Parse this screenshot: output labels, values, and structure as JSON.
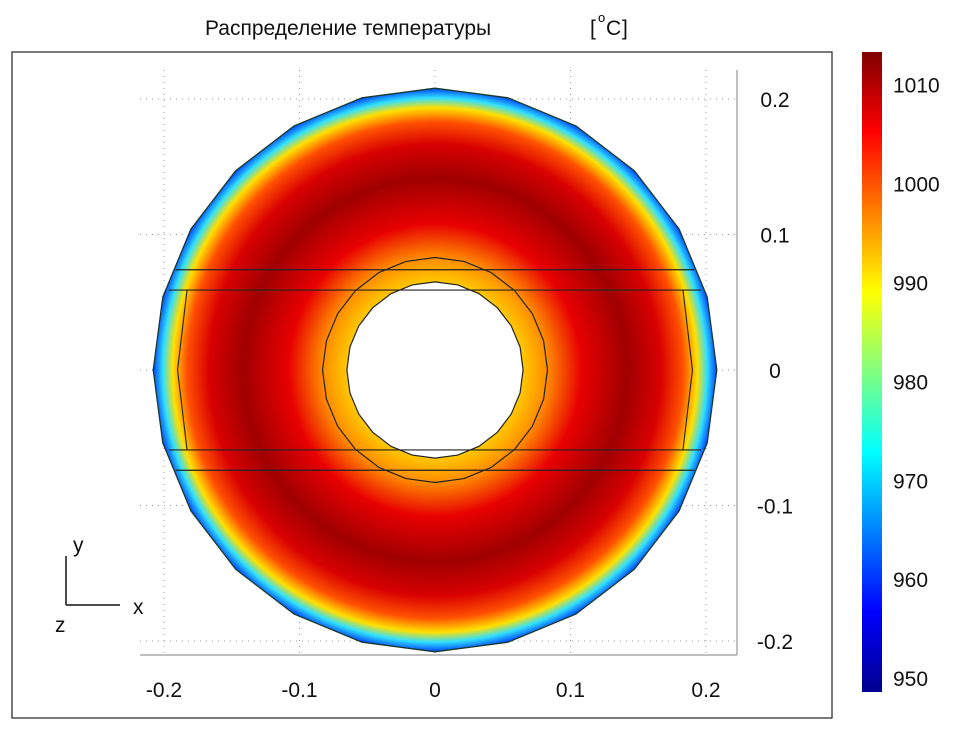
{
  "chart_data": {
    "type": "heatmap",
    "title": "Распределение температуры",
    "unit_label": "[°C]",
    "unit_superscript": "o",
    "unit_letter": "C",
    "xlabel": "x",
    "ylabel": "y",
    "zlabel": "z",
    "xlim": [
      -0.22,
      0.22
    ],
    "ylim": [
      -0.22,
      0.22
    ],
    "x_ticks": [
      "-0.2",
      "-0.1",
      "0",
      "0.1",
      "0.2"
    ],
    "x_tick_values": [
      -0.2,
      -0.1,
      0,
      0.1,
      0.2
    ],
    "y_ticks": [
      "0.2",
      "0.1",
      "0",
      "-0.1",
      "-0.2"
    ],
    "y_tick_values": [
      0.2,
      0.1,
      0,
      -0.1,
      -0.2
    ],
    "grid": true,
    "geometry": {
      "outer_radius": 0.208,
      "inner_ring_radius": 0.083,
      "hole_radius": 0.065,
      "band_lines_y": [
        0.074,
        0.059,
        -0.059,
        -0.074
      ]
    },
    "colormap": "jet",
    "color_range": [
      948.6,
      1013.3
    ],
    "colorbar_ticks": [
      "1010",
      "1000",
      "990",
      "980",
      "970",
      "960",
      "950"
    ],
    "colorbar_tick_values": [
      1010,
      1000,
      990,
      980,
      970,
      960,
      950
    ],
    "field": {
      "hole_edge_value": 993,
      "max_value": 1013,
      "max_at_radius": 0.14,
      "outer_edge_value": 955
    }
  }
}
